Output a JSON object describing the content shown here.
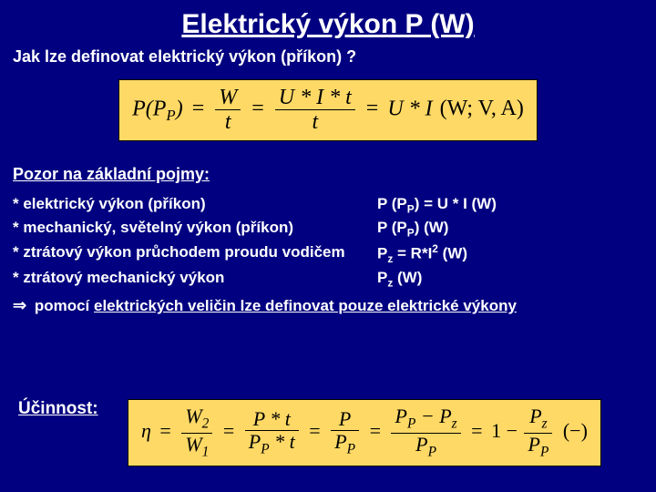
{
  "colors": {
    "background": "#000080",
    "text": "#ffffff",
    "formula_bg": "#ffd966",
    "formula_text": "#000000"
  },
  "typography": {
    "title_fontsize": 30,
    "body_fontsize": 18,
    "formula_fontsize": 24
  },
  "title": "Elektrický výkon P (W)",
  "subtitle": "Jak lze definovat elektrický výkon (příkon)  ?",
  "formula1": {
    "lhs": "P(P",
    "lhs_sub": "P",
    "lhs_close": ")",
    "eq": " = ",
    "f1_num": "W",
    "f1_den": "t",
    "f2_num": "U * I * t",
    "f2_den": "t",
    "rhs": "U * I",
    "units": "(W; V, A)"
  },
  "section_head": "Pozor na základní pojmy:",
  "terms": [
    {
      "left": "* elektrický výkon (příkon)",
      "right_html": "P (P<sub>P</sub>) = U * I (W)"
    },
    {
      "left": "* mechanický, světelný výkon (příkon)",
      "right_html": "P (P<sub>P</sub>) (W)"
    },
    {
      "left": "* ztrátový výkon průchodem proudu vodičem",
      "right_html": "P<sub>z</sub> = R*I<sup>2</sup> (W)"
    },
    {
      "left": "* ztrátový mechanický výkon",
      "right_html": "P<sub>z</sub> (W)"
    }
  ],
  "conclusion_arrow": "⇒",
  "conclusion_prefix": " pomocí ",
  "conclusion_underlined": "elektrických veličin lze definovat pouze elektrické výkony",
  "efficiency_label": "Účinnost:",
  "formula2": {
    "eta": "η",
    "eq": " = ",
    "f1_num": "W",
    "f1_num_sub": "2",
    "f1_den": "W",
    "f1_den_sub": "1",
    "f2_num": "P * t",
    "f2_den_pre": "P",
    "f2_den_sub": "P",
    "f2_den_post": " * t",
    "f3_num": "P",
    "f3_den_pre": "P",
    "f3_den_sub": "P",
    "f4_num_pre": "P",
    "f4_num_sub": "P",
    "f4_num_mid": " − P",
    "f4_num_sub2": "z",
    "f4_den_pre": "P",
    "f4_den_sub": "P",
    "one": "1",
    "minus": " − ",
    "f5_num_pre": "P",
    "f5_num_sub": "z",
    "f5_den_pre": "P",
    "f5_den_sub": "P",
    "units": "(−)"
  }
}
